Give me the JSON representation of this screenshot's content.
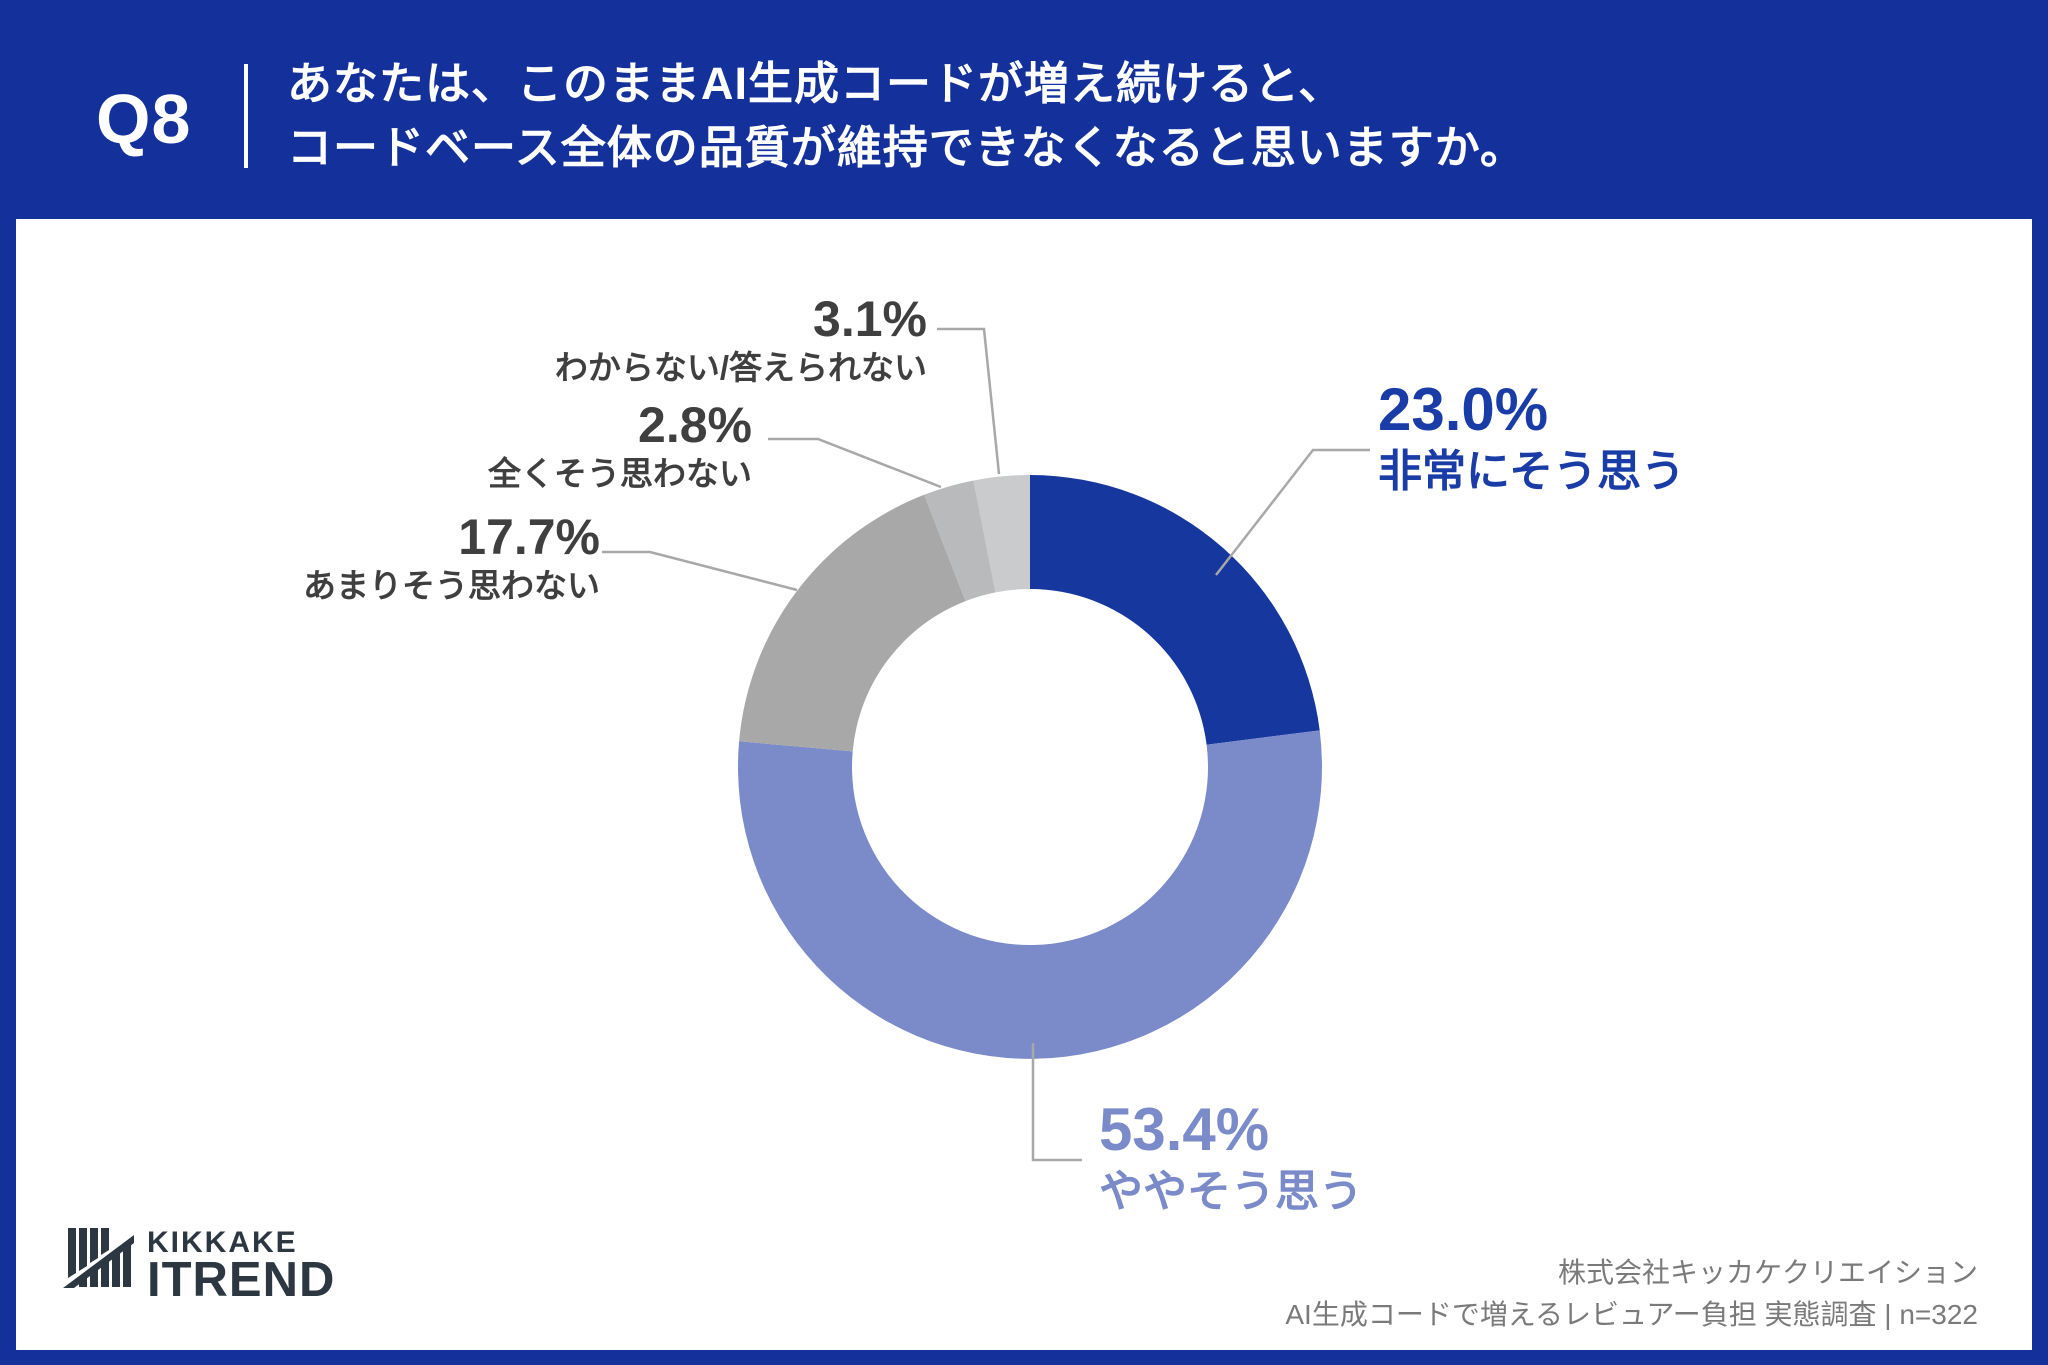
{
  "header": {
    "badge": "Q8",
    "question_line1": "あなたは、このままAI生成コードが増え続けると、",
    "question_line2": "コードベース全体の品質が維持できなくなると思いますか。"
  },
  "chart_data": {
    "type": "pie",
    "donut": true,
    "title": "あなたは、このままAI生成コードが増え続けると、コードベース全体の品質が維持できなくなると思いますか。",
    "start_angle_deg": 0,
    "direction": "clockwise",
    "n": 322,
    "slices": [
      {
        "key": "strongly-agree",
        "label": "非常にそう思う",
        "value": 23.0,
        "pct_label": "23.0%",
        "color": "#16379D",
        "text_color": "#1A3CA6"
      },
      {
        "key": "somewhat-agree",
        "label": "ややそう思う",
        "value": 53.4,
        "pct_label": "53.4%",
        "color": "#7B8AC8",
        "text_color": "#7B8AC8"
      },
      {
        "key": "somewhat-disagree",
        "label": "あまりそう思わない",
        "value": 17.7,
        "pct_label": "17.7%",
        "color": "#A8A8A9",
        "text_color": "#3F3F3F"
      },
      {
        "key": "strongly-disagree",
        "label": "全くそう思わない",
        "value": 2.8,
        "pct_label": "2.8%",
        "color": "#B9BABB",
        "text_color": "#3F3F3F"
      },
      {
        "key": "dont-know",
        "label": "わからない/答えられない",
        "value": 3.1,
        "pct_label": "3.1%",
        "color": "#C9CBCC",
        "text_color": "#3F3F3F"
      }
    ]
  },
  "logo": {
    "line1": "KIKKAKE",
    "line2": "ITREND"
  },
  "footer": {
    "company": "株式会社キッカケクリエイション",
    "survey": "AI生成コードで増えるレビュアー負担 実態調査 | n=322"
  },
  "colors": {
    "background": "#14319B",
    "card": "#FFFFFF",
    "header_text": "#FFFFFF",
    "dark_label": "#3F3F3F",
    "leader_line": "#A8A8A8",
    "footer_text": "#7A7A7A",
    "logo": "#2C3742"
  }
}
